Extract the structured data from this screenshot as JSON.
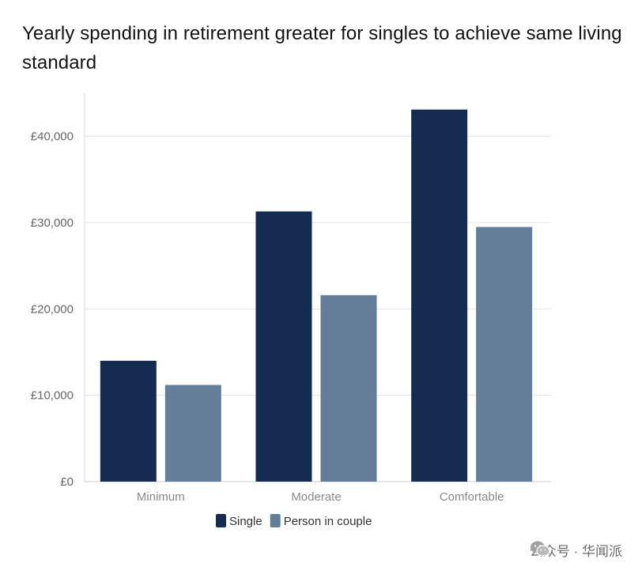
{
  "chart_data": {
    "type": "bar",
    "title": "Yearly spending in retirement greater for singles to achieve same living standard",
    "categories": [
      "Minimum",
      "Moderate",
      "Comfortable"
    ],
    "series": [
      {
        "name": "Single",
        "color": "#152b52",
        "values": [
          14000,
          31300,
          43100
        ]
      },
      {
        "name": "Person in couple",
        "color": "#647e9a",
        "values": [
          11200,
          21600,
          29500
        ]
      }
    ],
    "yticks": [
      0,
      10000,
      20000,
      30000,
      40000
    ],
    "ytick_labels": [
      "£0",
      "£10,000",
      "£20,000",
      "£30,000",
      "£40,000"
    ],
    "ylim": [
      0,
      45000
    ],
    "xlabel": "",
    "ylabel": "",
    "grid": true,
    "legend_position": "bottom-center"
  },
  "watermark": {
    "text": "公众号 · 华闻派",
    "icon": "wechat-icon"
  }
}
